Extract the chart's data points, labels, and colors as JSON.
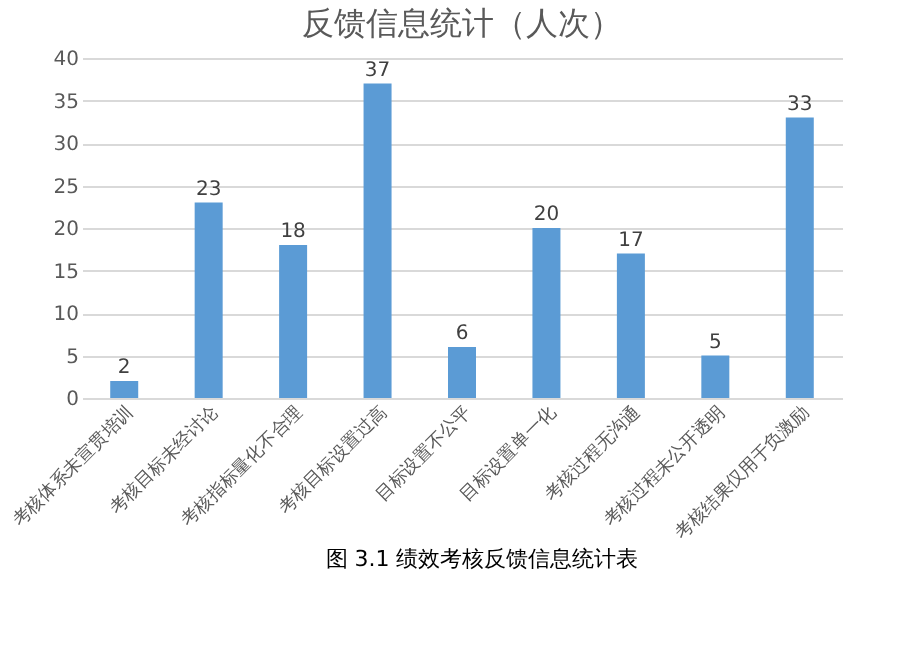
{
  "chart_data": {
    "type": "bar",
    "title": "反馈信息统计（人次）",
    "categories": [
      "考核体系未宣贯培训",
      "考核目标未经讨论",
      "考核指标量化不合理",
      "考核目标设置过高",
      "目标设置不公平",
      "目标设置单一化",
      "考核过程无沟通",
      "考核过程未公开透明",
      "考核结果仅用于负激励"
    ],
    "values": [
      2,
      23,
      18,
      37,
      6,
      20,
      17,
      5,
      33
    ],
    "color": "#5b9bd5",
    "ylim": [
      0,
      40
    ],
    "yticks": [
      0,
      5,
      10,
      15,
      20,
      25,
      30,
      35,
      40
    ],
    "grid": "y",
    "data_labels": true,
    "annotations": [
      "图 3.1 绩效考核反馈信息统计表"
    ]
  }
}
